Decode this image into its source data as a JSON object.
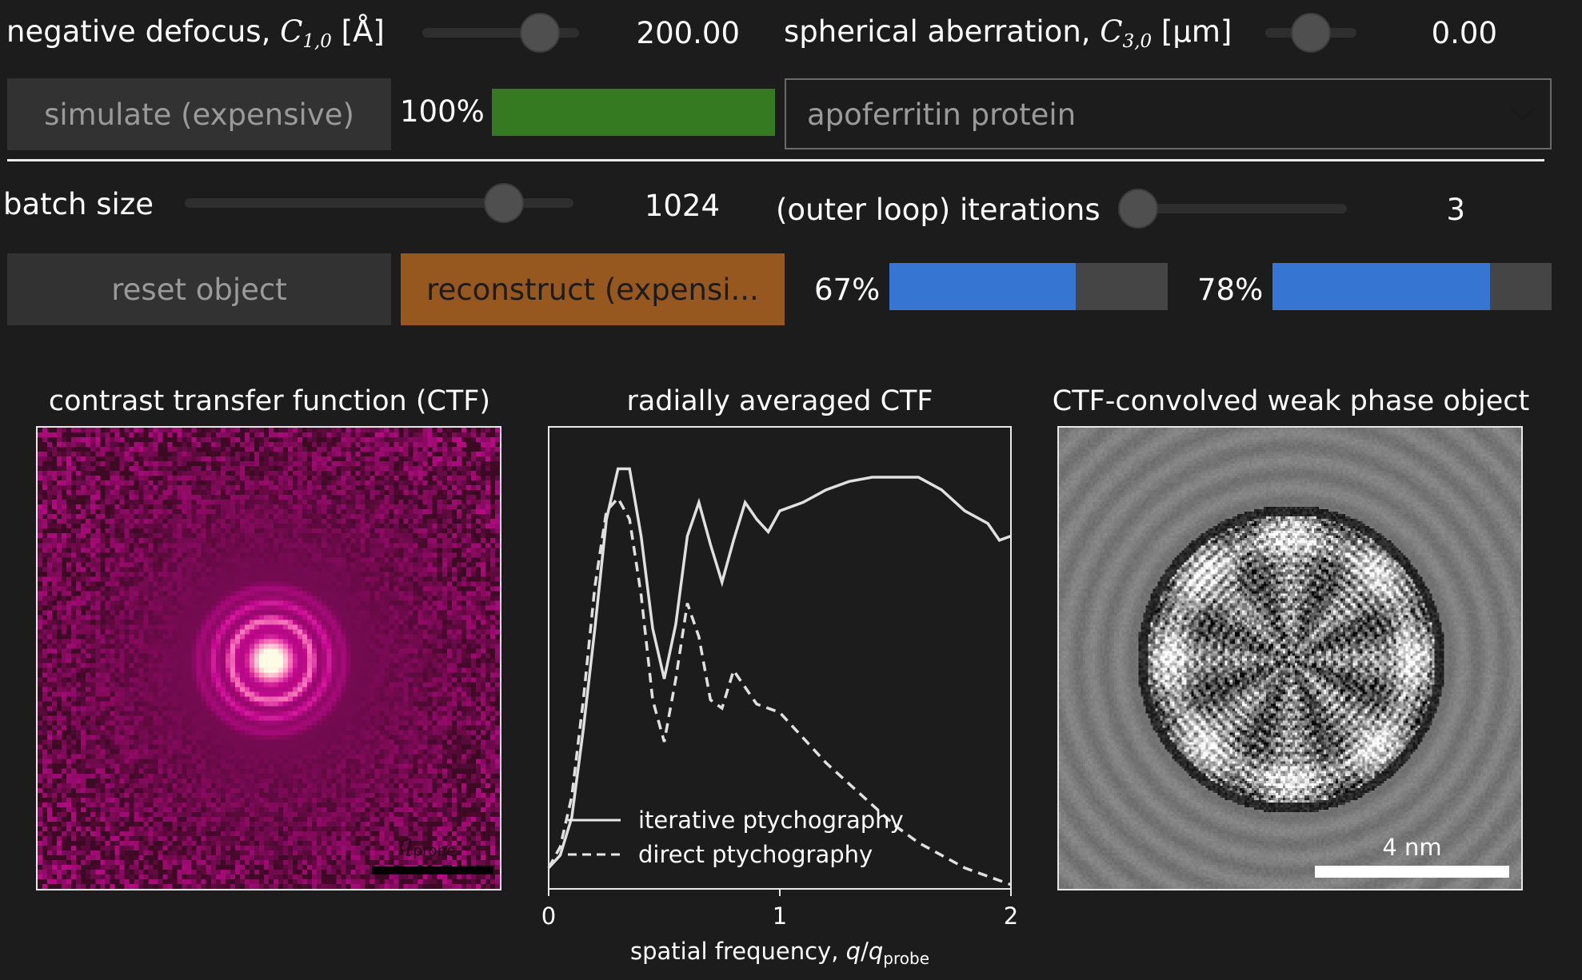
{
  "controls": {
    "defocus": {
      "label_prefix": "negative defocus, ",
      "symbol": "C",
      "subscript": "1,0",
      "unit": " [Å]",
      "value": "200.00",
      "level": 0.75
    },
    "aberration": {
      "label_prefix": "spherical aberration, ",
      "symbol": "C",
      "subscript": "3,0",
      "unit": " [µm]",
      "value": "0.00",
      "level": 0.5
    },
    "simulate_button": "simulate (expensive)",
    "simulate_progress": {
      "text": "100%",
      "fraction": 1.0,
      "color": "#357a21"
    },
    "dataset_select": {
      "selected": "apoferritin protein"
    },
    "batch_size": {
      "label": "batch size",
      "value": "1024",
      "level": 0.82
    },
    "iterations": {
      "label": "(outer loop) iterations",
      "value": "3",
      "level": 0.08
    },
    "reset_button": "reset object",
    "reconstruct_button": "reconstruct (expensi...",
    "progress_1": {
      "text": "67%",
      "fraction": 0.67,
      "color": "#3775d2"
    },
    "progress_2": {
      "text": "78%",
      "fraction": 0.78,
      "color": "#3775d2"
    }
  },
  "panels": {
    "ctf_image": {
      "title": "contrast transfer function (CTF)",
      "scalebar_label": "q",
      "scalebar_sub": "probe"
    },
    "radial_ctf": {
      "title": "radially averaged CTF"
    },
    "convolved": {
      "title": "CTF-convolved weak phase object",
      "scalebar_label": "4 nm"
    }
  },
  "chart_data": {
    "type": "line",
    "title": "radially averaged CTF",
    "xlabel_prefix": "spatial frequency, ",
    "xlabel_q": "q",
    "xlabel_sep": "/",
    "xlabel_sub": "probe",
    "xlim": [
      0,
      2
    ],
    "ylim": [
      0,
      1.1
    ],
    "xticks": [
      "0",
      "1",
      "2"
    ],
    "legend_position": "lower-left",
    "series": [
      {
        "name": "iterative ptychography",
        "style": "solid",
        "x": [
          0,
          0.05,
          0.1,
          0.15,
          0.2,
          0.25,
          0.3,
          0.35,
          0.4,
          0.45,
          0.5,
          0.55,
          0.6,
          0.65,
          0.7,
          0.75,
          0.8,
          0.85,
          0.9,
          0.95,
          1.0,
          1.1,
          1.2,
          1.3,
          1.4,
          1.5,
          1.6,
          1.7,
          1.8,
          1.9,
          1.95,
          2.0
        ],
        "y": [
          0.05,
          0.08,
          0.17,
          0.38,
          0.62,
          0.88,
          1.0,
          1.0,
          0.84,
          0.62,
          0.5,
          0.63,
          0.84,
          0.92,
          0.82,
          0.73,
          0.83,
          0.92,
          0.88,
          0.85,
          0.9,
          0.92,
          0.95,
          0.97,
          0.98,
          0.98,
          0.98,
          0.95,
          0.9,
          0.87,
          0.83,
          0.84
        ]
      },
      {
        "name": "direct ptychography",
        "style": "dashed",
        "x": [
          0,
          0.05,
          0.1,
          0.15,
          0.2,
          0.25,
          0.3,
          0.35,
          0.4,
          0.45,
          0.5,
          0.55,
          0.6,
          0.65,
          0.7,
          0.75,
          0.8,
          0.85,
          0.9,
          0.95,
          1.0,
          1.1,
          1.2,
          1.3,
          1.4,
          1.5,
          1.6,
          1.7,
          1.8,
          1.9,
          1.95,
          2.0
        ],
        "y": [
          0.05,
          0.1,
          0.22,
          0.45,
          0.72,
          0.9,
          0.93,
          0.88,
          0.7,
          0.45,
          0.35,
          0.5,
          0.68,
          0.6,
          0.45,
          0.43,
          0.52,
          0.48,
          0.44,
          0.43,
          0.42,
          0.36,
          0.3,
          0.25,
          0.2,
          0.15,
          0.11,
          0.08,
          0.05,
          0.03,
          0.02,
          0.01
        ]
      }
    ]
  }
}
